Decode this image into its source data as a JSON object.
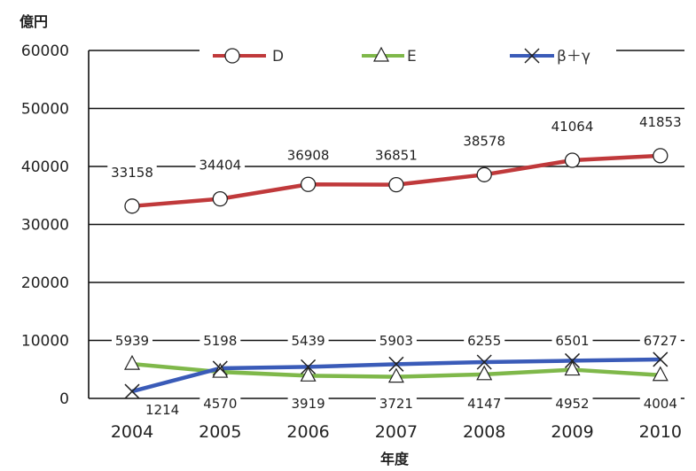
{
  "chart_data": {
    "type": "line",
    "title": "",
    "ylabel": "億円",
    "xlabel": "年度",
    "ylim": [
      0,
      60000
    ],
    "yticks": [
      0,
      10000,
      20000,
      30000,
      40000,
      50000,
      60000
    ],
    "categories": [
      "2004",
      "2005",
      "2006",
      "2007",
      "2008",
      "2009",
      "2010"
    ],
    "grid": true,
    "legend": "top",
    "series": [
      {
        "name": "D",
        "marker": "circle",
        "color": "#c0393b",
        "values": [
          33158,
          34404,
          36908,
          36851,
          38578,
          41064,
          41853
        ],
        "labels": [
          "33158",
          "34404",
          "36908",
          "36851",
          "38578",
          "41064",
          "41853"
        ]
      },
      {
        "name": "E",
        "marker": "triangle",
        "color": "#7fb84a",
        "values": [
          5939,
          4570,
          3919,
          3721,
          4147,
          4952,
          4004
        ],
        "labels": [
          "5939",
          "4570",
          "3919",
          "3721",
          "4147",
          "4952",
          "4004"
        ]
      },
      {
        "name": "β＋γ",
        "marker": "x",
        "color": "#3a5bb8",
        "values": [
          1214,
          5198,
          5439,
          5903,
          6255,
          6501,
          6727
        ],
        "labels": [
          "1214",
          "5198",
          "5439",
          "5903",
          "6255",
          "6501",
          "6727"
        ]
      }
    ]
  }
}
